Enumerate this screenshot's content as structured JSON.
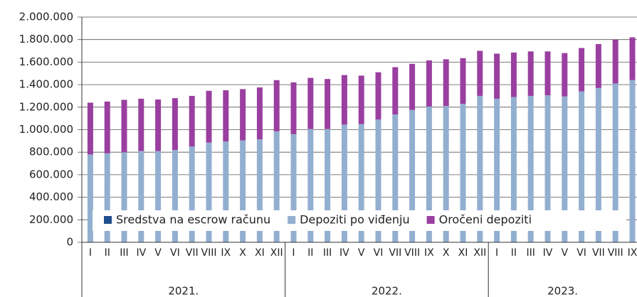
{
  "chart_data": {
    "type": "stacked_bar",
    "categories": [
      "I",
      "II",
      "III",
      "IV",
      "V",
      "VI",
      "VII",
      "VIII",
      "IX",
      "X",
      "XI",
      "XII",
      "I",
      "II",
      "III",
      "IV",
      "V",
      "VI",
      "VII",
      "VIII",
      "IX",
      "X",
      "XI",
      "XII",
      "I",
      "II",
      "III",
      "IV",
      "V",
      "VI",
      "VII",
      "VIII",
      "IX"
    ],
    "groups": [
      {
        "label": "2021.",
        "count": 12
      },
      {
        "label": "2022.",
        "count": 12
      },
      {
        "label": "2023.",
        "count": 9
      }
    ],
    "series": [
      {
        "name": "Sredstva na escrow računu",
        "color": "#1f4e8c",
        "values": [
          0,
          0,
          0,
          0,
          0,
          0,
          0,
          0,
          0,
          0,
          0,
          0,
          0,
          0,
          0,
          0,
          0,
          0,
          0,
          0,
          0,
          0,
          0,
          0,
          0,
          0,
          0,
          0,
          0,
          0,
          0,
          0,
          0
        ]
      },
      {
        "name": "Depoziti po viđenju",
        "color": "#93afd0",
        "values": [
          780000,
          790000,
          800000,
          810000,
          810000,
          820000,
          850000,
          885000,
          895000,
          905000,
          915000,
          985000,
          960000,
          1005000,
          1005000,
          1045000,
          1050000,
          1090000,
          1135000,
          1175000,
          1205000,
          1210000,
          1230000,
          1300000,
          1275000,
          1290000,
          1300000,
          1305000,
          1295000,
          1340000,
          1370000,
          1410000,
          1440000
        ]
      },
      {
        "name": "Oročeni depoziti",
        "color": "#9a3fa0",
        "values": [
          460000,
          460000,
          465000,
          465000,
          458000,
          460000,
          450000,
          460000,
          455000,
          455000,
          460000,
          455000,
          460000,
          455000,
          445000,
          440000,
          430000,
          420000,
          420000,
          410000,
          410000,
          415000,
          405000,
          400000,
          400000,
          395000,
          395000,
          390000,
          385000,
          385000,
          390000,
          390000,
          380000
        ]
      }
    ],
    "ylim": [
      0,
      2000000
    ],
    "yticks": [
      {
        "value": 0,
        "label": "0"
      },
      {
        "value": 200000,
        "label": "200.000"
      },
      {
        "value": 400000,
        "label": "400.000"
      },
      {
        "value": 600000,
        "label": "600.000"
      },
      {
        "value": 800000,
        "label": "800.000"
      },
      {
        "value": 1000000,
        "label": "1.000.000"
      },
      {
        "value": 1200000,
        "label": "1.200.000"
      },
      {
        "value": 1400000,
        "label": "1.400.000"
      },
      {
        "value": 1600000,
        "label": "1.600.000"
      },
      {
        "value": 1800000,
        "label": "1.800.000"
      },
      {
        "value": 2000000,
        "label": "2.000.000"
      }
    ],
    "grid": true
  }
}
